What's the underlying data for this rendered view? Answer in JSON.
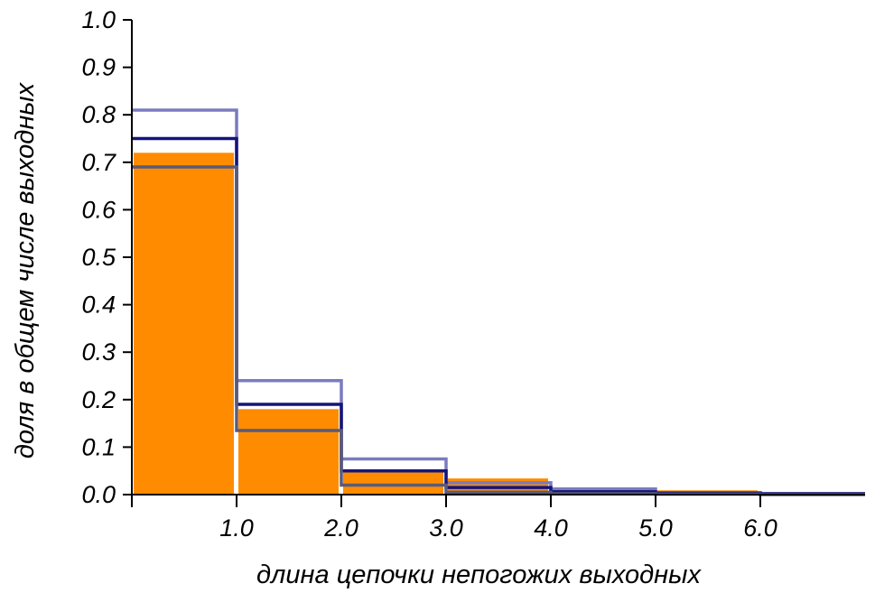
{
  "chart_data": {
    "type": "bar",
    "title": "",
    "xlabel": "длина цепочки непогожих выходных",
    "ylabel": "доля в общем числе выходных",
    "xlim": [
      0,
      7
    ],
    "ylim": [
      0,
      1.0
    ],
    "x_ticks": [
      {
        "value": 1,
        "label": "1.0"
      },
      {
        "value": 2,
        "label": "2.0"
      },
      {
        "value": 3,
        "label": "3.0"
      },
      {
        "value": 4,
        "label": "4.0"
      },
      {
        "value": 5,
        "label": "5.0"
      },
      {
        "value": 6,
        "label": "6.0"
      }
    ],
    "y_ticks": [
      {
        "value": 0.0,
        "label": "0.0"
      },
      {
        "value": 0.1,
        "label": "0.1"
      },
      {
        "value": 0.2,
        "label": "0.2"
      },
      {
        "value": 0.3,
        "label": "0.3"
      },
      {
        "value": 0.4,
        "label": "0.4"
      },
      {
        "value": 0.5,
        "label": "0.5"
      },
      {
        "value": 0.6,
        "label": "0.6"
      },
      {
        "value": 0.7,
        "label": "0.7"
      },
      {
        "value": 0.8,
        "label": "0.8"
      },
      {
        "value": 0.9,
        "label": "0.9"
      },
      {
        "value": 1.0,
        "label": "1.0"
      }
    ],
    "bars": {
      "color": "#ff8c00",
      "bins": [
        {
          "x0": 0,
          "x1": 1,
          "value": 0.72
        },
        {
          "x0": 1,
          "x1": 2,
          "value": 0.18
        },
        {
          "x0": 2,
          "x1": 3,
          "value": 0.05
        },
        {
          "x0": 3,
          "x1": 4,
          "value": 0.034
        },
        {
          "x0": 4,
          "x1": 5,
          "value": 0.01
        },
        {
          "x0": 5,
          "x1": 6,
          "value": 0.009
        },
        {
          "x0": 6,
          "x1": 7,
          "value": 0.003
        }
      ]
    },
    "step_lines": [
      {
        "color": "#7b7bbf",
        "values": [
          0.81,
          0.24,
          0.075,
          0.025,
          0.012,
          0.004,
          0.002
        ]
      },
      {
        "color": "#14147a",
        "values": [
          0.75,
          0.19,
          0.05,
          0.015,
          0.006,
          0.003,
          0.002
        ]
      },
      {
        "color": "#5a5a7a",
        "values": [
          0.69,
          0.135,
          0.02,
          0.005,
          0.002,
          0.001,
          0.0
        ]
      }
    ],
    "grid": false,
    "legend": "none"
  }
}
